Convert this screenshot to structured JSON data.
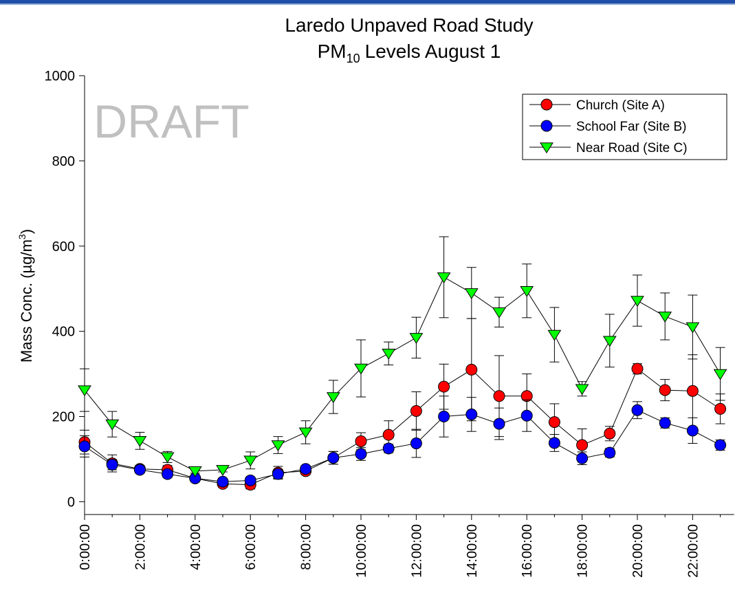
{
  "chart_data": {
    "type": "line",
    "title": "Laredo Unpaved Road Study",
    "subtitle": {
      "main": "PM",
      "sub": "10",
      "rest": "Levels August 1"
    },
    "ylabel": {
      "main": "Mass Conc. (µg/m",
      "sup": "3",
      "rest": ")"
    },
    "annotation": "DRAFT",
    "categories": [
      "0:00:00",
      null,
      "2:00:00",
      null,
      "4:00:00",
      null,
      "6:00:00",
      null,
      "8:00:00",
      null,
      "10:00:00",
      null,
      "12:00:00",
      null,
      "14:00:00",
      null,
      "16:00:00",
      null,
      "18:00:00",
      null,
      "20:00:00",
      null,
      "22:00:00",
      null
    ],
    "ylim": [
      -30,
      1000
    ],
    "yticks": [
      0,
      200,
      400,
      600,
      800,
      1000
    ],
    "legend": "upper right",
    "series": [
      {
        "name": "Church (Site A)",
        "color": "#ff0000",
        "marker": "circle",
        "values": [
          140,
          90,
          77,
          75,
          55,
          42,
          40,
          68,
          72,
          103,
          142,
          157,
          213,
          270,
          310,
          248,
          248,
          187,
          133,
          160,
          312,
          262,
          260,
          218
        ],
        "errors": [
          28,
          20,
          8,
          10,
          5,
          8,
          10,
          15,
          8,
          15,
          20,
          33,
          45,
          53,
          120,
          95,
          52,
          43,
          38,
          17,
          12,
          25,
          85,
          35
        ]
      },
      {
        "name": "School Far (Site B)",
        "color": "#0000ff",
        "marker": "circle",
        "values": [
          130,
          87,
          75,
          65,
          55,
          47,
          50,
          65,
          77,
          103,
          112,
          125,
          137,
          200,
          205,
          183,
          202,
          138,
          102,
          115,
          215,
          185,
          167,
          133
        ],
        "errors": [
          25,
          12,
          8,
          8,
          5,
          8,
          8,
          10,
          8,
          15,
          15,
          10,
          33,
          48,
          40,
          37,
          37,
          20,
          15,
          10,
          20,
          12,
          30,
          12
        ]
      },
      {
        "name": "Near Road (Site C)",
        "color": "#00ff00",
        "marker": "triangle-down",
        "values": [
          262,
          182,
          143,
          105,
          72,
          75,
          97,
          133,
          163,
          246,
          313,
          348,
          385,
          527,
          490,
          445,
          495,
          392,
          265,
          378,
          472,
          435,
          410,
          300
        ],
        "errors": [
          50,
          30,
          20,
          13,
          5,
          5,
          20,
          20,
          27,
          39,
          67,
          27,
          48,
          95,
          60,
          35,
          63,
          64,
          17,
          62,
          60,
          55,
          75,
          62
        ]
      }
    ]
  }
}
